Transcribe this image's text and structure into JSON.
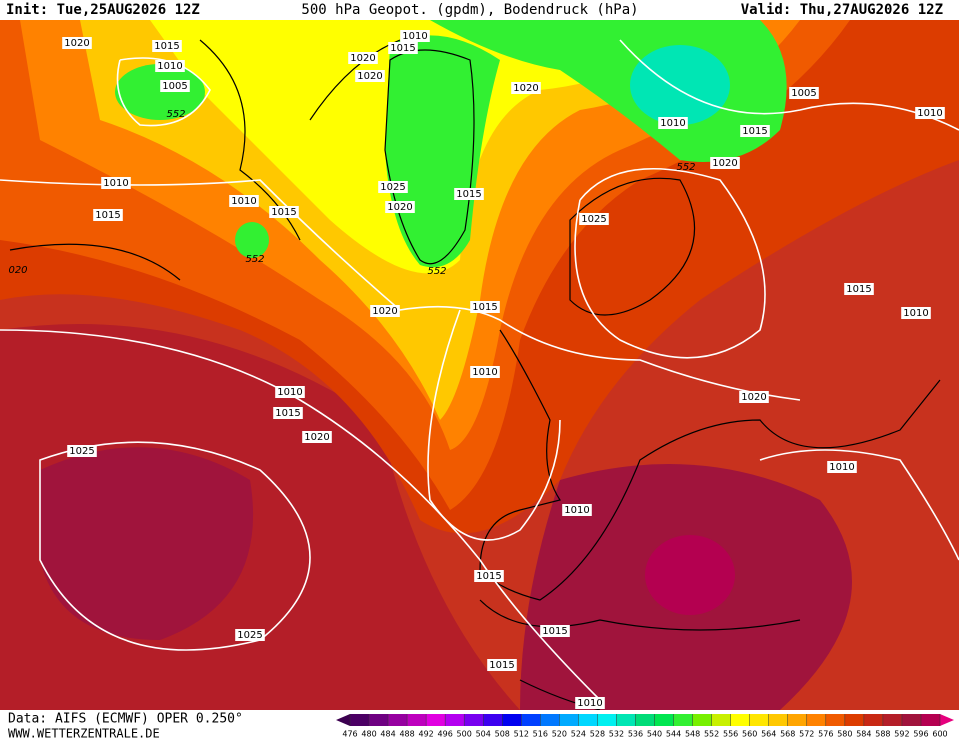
{
  "header": {
    "init": "Init: Tue,25AUG2026 12Z",
    "title": "500 hPa Geopot. (gpdm), Bodendruck (hPa)",
    "valid": "Valid: Thu,27AUG2026 12Z"
  },
  "footer": {
    "source": "Data: AIFS (ECMWF) OPER 0.250°",
    "website": "WWW.WETTERZENTRALE.DE"
  },
  "contour_labels": [
    "1020",
    "1015",
    "1010",
    "1005",
    "552",
    "1010",
    "1015",
    "1020",
    "1020",
    "1020",
    "1005",
    "1010",
    "1010",
    "1015",
    "1020",
    "552",
    "1010",
    "1025",
    "1015",
    "1010",
    "1020",
    "1015",
    "1015",
    "1025",
    "552",
    "552",
    "020",
    "1015",
    "1020",
    "1015",
    "1010",
    "1010",
    "1010",
    "1020",
    "1015",
    "1020",
    "1025",
    "1010",
    "1010",
    "1015",
    "1015",
    "1025",
    "1015",
    "1010"
  ],
  "colorbar": {
    "values": [
      476,
      480,
      484,
      488,
      492,
      496,
      500,
      504,
      508,
      512,
      516,
      520,
      524,
      528,
      532,
      536,
      540,
      544,
      548,
      552,
      556,
      560,
      564,
      568,
      572,
      576,
      580,
      584,
      588,
      592,
      596,
      600
    ],
    "colors": [
      "#4b0064",
      "#6e0082",
      "#9600a0",
      "#be00be",
      "#e100e1",
      "#b400f0",
      "#7800f0",
      "#3c00f0",
      "#0000f0",
      "#0040ff",
      "#0078ff",
      "#00aaff",
      "#00d7ff",
      "#00f0f0",
      "#00e6b4",
      "#00dc78",
      "#00e650",
      "#32f032",
      "#78f000",
      "#c8f000",
      "#ffff00",
      "#ffe600",
      "#ffc800",
      "#ffa500",
      "#ff8200",
      "#f05a00",
      "#dc3c00",
      "#c82814",
      "#b41e28",
      "#a0143c",
      "#b40050"
    ]
  }
}
